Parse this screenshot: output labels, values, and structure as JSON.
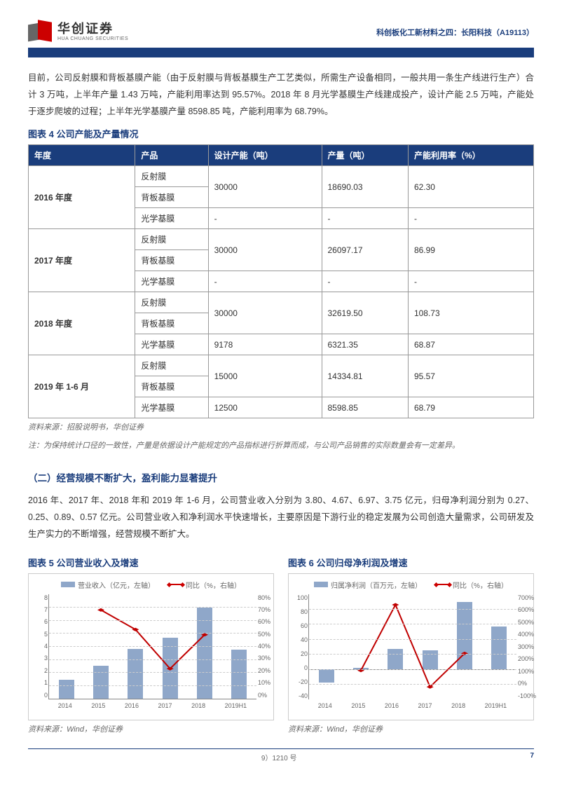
{
  "header": {
    "logo_cn": "华创证券",
    "logo_en": "HUA CHUANG SECURITIES",
    "doc_title": "科创板化工新材料之四：长阳科技（A19113）"
  },
  "intro_paragraph": "目前，公司反射膜和背板基膜产能（由于反射膜与背板基膜生产工艺类似，所需生产设备相同，一般共用一条生产线进行生产）合计 3 万吨，上半年产量 1.43 万吨，产能利用率达到 95.57%。2018 年 8 月光学基膜生产线建成投产，设计产能 2.5 万吨，产能处于逐步爬坡的过程；上半年光学基膜产量 8598.85 吨，产能利用率为 68.79%。",
  "table4": {
    "title": "图表 4  公司产能及产量情况",
    "columns": [
      "年度",
      "产品",
      "设计产能（吨）",
      "产量（吨）",
      "产能利用率（%）"
    ],
    "groups": [
      {
        "year": "2016 年度",
        "rows": [
          {
            "product": "反射膜",
            "capacity": "30000",
            "output": "18690.03",
            "util": "62.30",
            "merge_cap": true,
            "merge_out": true,
            "merge_util": true
          },
          {
            "product": "背板基膜"
          },
          {
            "product": "光学基膜",
            "capacity": "-",
            "output": "-",
            "util": "-"
          }
        ]
      },
      {
        "year": "2017 年度",
        "rows": [
          {
            "product": "反射膜",
            "capacity": "30000",
            "output": "26097.17",
            "util": "86.99",
            "merge_cap": true,
            "merge_out": true,
            "merge_util": true
          },
          {
            "product": "背板基膜"
          },
          {
            "product": "光学基膜",
            "capacity": "-",
            "output": "-",
            "util": "-"
          }
        ]
      },
      {
        "year": "2018 年度",
        "rows": [
          {
            "product": "反射膜",
            "capacity": "30000",
            "output": "32619.50",
            "util": "108.73",
            "merge_cap": true,
            "merge_out": true,
            "merge_util": true
          },
          {
            "product": "背板基膜"
          },
          {
            "product": "光学基膜",
            "capacity": "9178",
            "output": "6321.35",
            "util": "68.87"
          }
        ]
      },
      {
        "year": "2019 年 1-6 月",
        "rows": [
          {
            "product": "反射膜",
            "capacity": "15000",
            "output": "14334.81",
            "util": "95.57",
            "merge_cap": true,
            "merge_out": true,
            "merge_util": true
          },
          {
            "product": "背板基膜"
          },
          {
            "product": "光学基膜",
            "capacity": "12500",
            "output": "8598.85",
            "util": "68.79"
          }
        ]
      }
    ],
    "source": "资料来源：招股说明书，华创证券",
    "note": "注：为保持统计口径的一致性，产量是依据设计产能规定的产品指标进行折算而成，与公司产品销售的实际数量会有一定差异。"
  },
  "section2": {
    "heading": "（二）经营规模不断扩大，盈利能力显著提升",
    "paragraph": "2016 年、2017 年、2018 年和 2019 年 1-6 月，公司营业收入分别为 3.80、4.67、6.97、3.75 亿元，归母净利润分别为 0.27、0.25、0.89、0.57 亿元。公司营业收入和净利润水平快速增长，主要原因是下游行业的稳定发展为公司创造大量需求，公司研发及生产实力的不断增强，经营规模不断扩大。"
  },
  "chart5": {
    "title": "图表 5  公司营业收入及增速",
    "legend_bar": "营业收入（亿元，左轴）",
    "legend_line": "同比（%，右轴）",
    "categories": [
      "2014",
      "2015",
      "2016",
      "2017",
      "2018",
      "2019H1"
    ],
    "bar_values": [
      1.45,
      2.5,
      3.8,
      4.67,
      6.97,
      3.75
    ],
    "line_values": [
      null,
      68,
      53,
      23,
      49,
      null
    ],
    "y_left": {
      "min": 0,
      "max": 8,
      "ticks": [
        "8",
        "7",
        "6",
        "5",
        "4",
        "3",
        "2",
        "1",
        "0"
      ]
    },
    "y_right": {
      "min": 0,
      "max": 80,
      "ticks": [
        "80%",
        "70%",
        "60%",
        "50%",
        "40%",
        "30%",
        "20%",
        "10%",
        "0%"
      ]
    },
    "bar_color": "#8fa7c9",
    "line_color": "#c00000",
    "grid_color": "#cccccc",
    "source": "资料来源：Wind，华创证券"
  },
  "chart6": {
    "title": "图表 6  公司归母净利润及增速",
    "legend_bar": "归属净利润（百万元，左轴）",
    "legend_line": "同比（%，右轴）",
    "categories": [
      "2014",
      "2015",
      "2016",
      "2017",
      "2018",
      "2019H1"
    ],
    "bar_values": [
      -18,
      2,
      27,
      25,
      89,
      57
    ],
    "line_values": [
      null,
      120,
      620,
      -5,
      250,
      null
    ],
    "y_left": {
      "min": -40,
      "max": 100,
      "ticks": [
        "100",
        "80",
        "60",
        "40",
        "20",
        "0",
        "-20",
        "-40"
      ]
    },
    "y_right": {
      "min": -100,
      "max": 700,
      "ticks": [
        "700%",
        "600%",
        "500%",
        "400%",
        "300%",
        "200%",
        "100%",
        "0%",
        "-100%"
      ]
    },
    "bar_color": "#8fa7c9",
    "line_color": "#c00000",
    "grid_color": "#cccccc",
    "source": "资料来源：Wind，华创证券"
  },
  "footer": {
    "left": "",
    "center": "9）1210 号",
    "page": "7"
  }
}
